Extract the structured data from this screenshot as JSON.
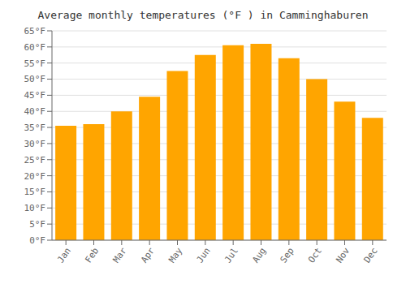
{
  "chart_data": {
    "type": "bar",
    "title": "Average monthly temperatures (°F ) in Camminghaburen",
    "categories": [
      "Jan",
      "Feb",
      "Mar",
      "Apr",
      "May",
      "Jun",
      "Jul",
      "Aug",
      "Sep",
      "Oct",
      "Nov",
      "Dec"
    ],
    "values": [
      35.5,
      36.0,
      40.0,
      44.5,
      52.5,
      57.5,
      60.5,
      61.0,
      56.5,
      50.0,
      43.0,
      38.0
    ],
    "color": "#FFA500",
    "ylim": [
      0,
      65
    ],
    "yticks": [
      {
        "value": 0,
        "label": "0°F"
      },
      {
        "value": 5,
        "label": "5°F"
      },
      {
        "value": 10,
        "label": "10°F"
      },
      {
        "value": 15,
        "label": "15°F"
      },
      {
        "value": 20,
        "label": "20°F"
      },
      {
        "value": 25,
        "label": "25°F"
      },
      {
        "value": 30,
        "label": "30°F"
      },
      {
        "value": 35,
        "label": "35°F"
      },
      {
        "value": 40,
        "label": "40°F"
      },
      {
        "value": 45,
        "label": "45°F"
      },
      {
        "value": 50,
        "label": "50°F"
      },
      {
        "value": 55,
        "label": "55°F"
      },
      {
        "value": 60,
        "label": "60°F"
      },
      {
        "value": 65,
        "label": "65°F"
      }
    ],
    "grid": true
  }
}
